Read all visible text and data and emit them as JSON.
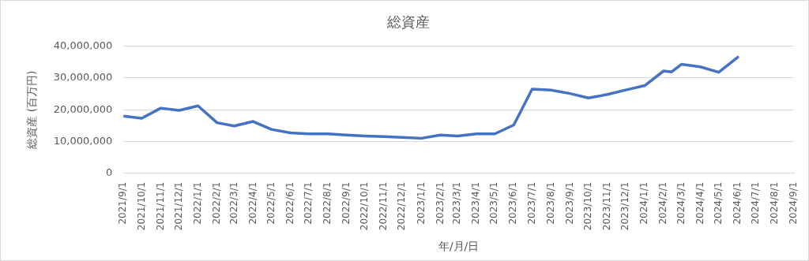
{
  "chart_data": {
    "type": "line",
    "title": "総資産",
    "xlabel": "年/月/日",
    "ylabel": "総資産 (百万円)",
    "x": [
      "2021-09-01",
      "2021-10-01",
      "2021-11-01",
      "2021-12-01",
      "2022-01-01",
      "2022-02-01",
      "2022-03-01",
      "2022-04-01",
      "2022-05-01",
      "2022-06-01",
      "2022-07-01",
      "2022-08-01",
      "2022-09-01",
      "2022-10-01",
      "2022-11-01",
      "2022-12-01",
      "2023-01-01",
      "2023-02-01",
      "2023-03-01",
      "2023-04-01",
      "2023-05-01",
      "2023-06-01",
      "2023-07-01",
      "2023-08-01",
      "2023-09-01",
      "2023-10-01",
      "2023-11-01",
      "2023-12-01",
      "2024-01-01",
      "2024-02-01",
      "2024-02-14",
      "2024-03-01",
      "2024-04-01",
      "2024-05-01",
      "2024-06-01"
    ],
    "series": [
      {
        "color": "#4472c4",
        "values": [
          18000000,
          17300000,
          20500000,
          19800000,
          21200000,
          15900000,
          14900000,
          16300000,
          13800000,
          12700000,
          12400000,
          12400000,
          12000000,
          11700000,
          11500000,
          11300000,
          11000000,
          12000000,
          11700000,
          12400000,
          12400000,
          15200000,
          26500000,
          26200000,
          25100000,
          23700000,
          24800000,
          26200000,
          27600000,
          32200000,
          31900000,
          34300000,
          33500000,
          31800000,
          36500000
        ]
      }
    ],
    "xlim": [
      "2021-09-01",
      "2024-09-01"
    ],
    "xticks": [
      {
        "value": "2021-09-01",
        "label": "2021/9/1"
      },
      {
        "value": "2021-10-01",
        "label": "2021/10/1"
      },
      {
        "value": "2021-11-01",
        "label": "2021/11/1"
      },
      {
        "value": "2021-12-01",
        "label": "2021/12/1"
      },
      {
        "value": "2022-01-01",
        "label": "2022/1/1"
      },
      {
        "value": "2022-02-01",
        "label": "2022/2/1"
      },
      {
        "value": "2022-03-01",
        "label": "2022/3/1"
      },
      {
        "value": "2022-04-01",
        "label": "2022/4/1"
      },
      {
        "value": "2022-05-01",
        "label": "2022/5/1"
      },
      {
        "value": "2022-06-01",
        "label": "2022/6/1"
      },
      {
        "value": "2022-07-01",
        "label": "2022/7/1"
      },
      {
        "value": "2022-08-01",
        "label": "2022/8/1"
      },
      {
        "value": "2022-09-01",
        "label": "2022/9/1"
      },
      {
        "value": "2022-10-01",
        "label": "2022/10/1"
      },
      {
        "value": "2022-11-01",
        "label": "2022/11/1"
      },
      {
        "value": "2022-12-01",
        "label": "2022/12/1"
      },
      {
        "value": "2023-01-01",
        "label": "2023/1/1"
      },
      {
        "value": "2023-02-01",
        "label": "2023/2/1"
      },
      {
        "value": "2023-03-01",
        "label": "2023/3/1"
      },
      {
        "value": "2023-04-01",
        "label": "2023/4/1"
      },
      {
        "value": "2023-05-01",
        "label": "2023/5/1"
      },
      {
        "value": "2023-06-01",
        "label": "2023/6/1"
      },
      {
        "value": "2023-07-01",
        "label": "2023/7/1"
      },
      {
        "value": "2023-08-01",
        "label": "2023/8/1"
      },
      {
        "value": "2023-09-01",
        "label": "2023/9/1"
      },
      {
        "value": "2023-10-01",
        "label": "2023/10/1"
      },
      {
        "value": "2023-11-01",
        "label": "2023/11/1"
      },
      {
        "value": "2023-12-01",
        "label": "2023/12/1"
      },
      {
        "value": "2024-01-01",
        "label": "2024/1/1"
      },
      {
        "value": "2024-02-01",
        "label": "2024/2/1"
      },
      {
        "value": "2024-03-01",
        "label": "2024/3/1"
      },
      {
        "value": "2024-04-01",
        "label": "2024/4/1"
      },
      {
        "value": "2024-05-01",
        "label": "2024/5/1"
      },
      {
        "value": "2024-06-01",
        "label": "2024/6/1"
      },
      {
        "value": "2024-07-01",
        "label": "2024/7/1"
      },
      {
        "value": "2024-08-01",
        "label": "2024/8/1"
      },
      {
        "value": "2024-09-01",
        "label": "2024/9/1"
      }
    ],
    "ylim": [
      0,
      40000000
    ],
    "yticks": [
      0,
      {
        "value": 10000000,
        "label": "10,000,000"
      },
      {
        "value": 20000000,
        "label": "20,000,000"
      },
      {
        "value": 30000000,
        "label": "30,000,000"
      },
      {
        "value": 40000000,
        "label": "40,000,000"
      }
    ],
    "grid": "y",
    "legend": false,
    "marker": "none",
    "line_style": "solid"
  }
}
